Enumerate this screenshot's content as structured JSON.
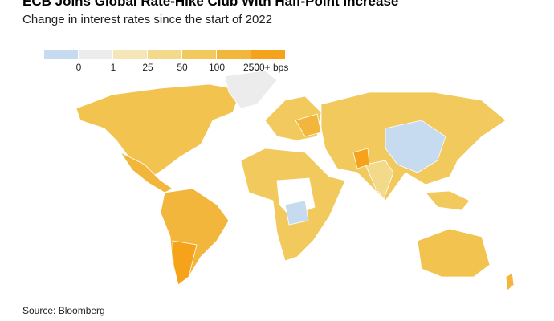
{
  "header": {
    "title": "ECB Joins Global Rate-Hike Club With Half-Point Increase",
    "subtitle": "Change in interest rates since the start of 2022"
  },
  "legend": {
    "labels": [
      "0",
      "1",
      "25",
      "50",
      "100",
      "250",
      "500+ bps"
    ],
    "colors": [
      "#c6dbef",
      "#ececec",
      "#f5e6b8",
      "#f3d98a",
      "#f2c95c",
      "#f2b63c",
      "#f7a21b"
    ]
  },
  "footer": {
    "source": "Source: Bloomberg"
  }
}
